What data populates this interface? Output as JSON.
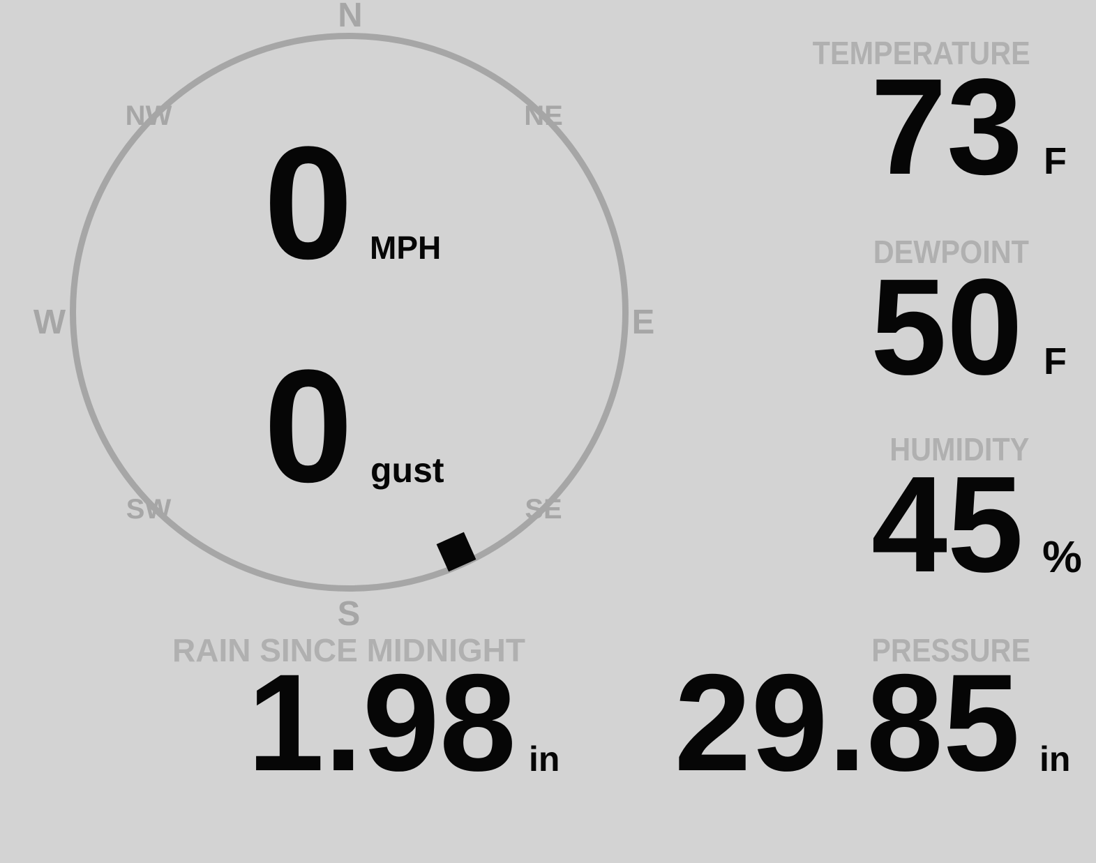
{
  "theme": {
    "background": "#d3d3d3",
    "dial_gray": "#a6a6a6",
    "label_gray": "#b0b0b0",
    "value_black": "#060606"
  },
  "wind": {
    "speed": {
      "value": "0",
      "unit": "MPH"
    },
    "gust": {
      "value": "0",
      "unit": "gust"
    },
    "compass": {
      "north": "N",
      "east": "E",
      "south": "S",
      "west": "W",
      "northeast": "NE",
      "northwest": "NW",
      "southeast": "SE",
      "southwest": "SW",
      "direction_deg": 156
    }
  },
  "metrics": {
    "temperature": {
      "label": "TEMPERATURE",
      "value": "73",
      "unit": "F"
    },
    "dewpoint": {
      "label": "DEWPOINT",
      "value": "50",
      "unit": "F"
    },
    "humidity": {
      "label": "HUMIDITY",
      "value": "45",
      "unit": "%"
    },
    "rain": {
      "label": "RAIN SINCE MIDNIGHT",
      "value": "1.98",
      "unit": "in"
    },
    "pressure": {
      "label": "PRESSURE",
      "value": "29.85",
      "unit": "in"
    }
  }
}
